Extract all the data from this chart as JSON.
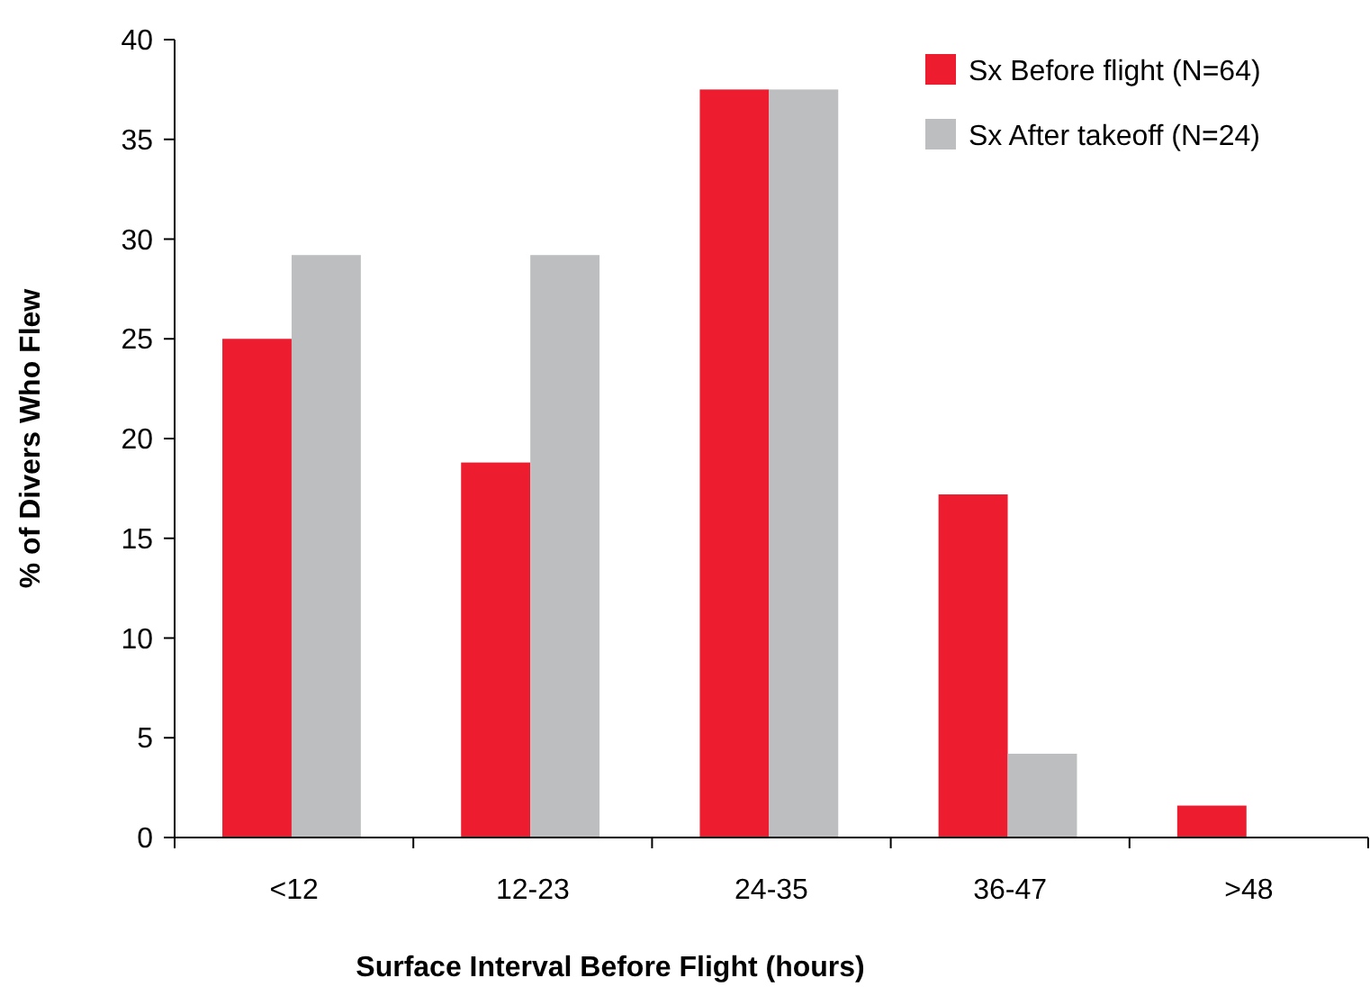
{
  "chart_data": {
    "type": "bar",
    "xlabel": "Surface Interval Before Flight (hours)",
    "ylabel": "% of Divers Who Flew",
    "categories": [
      "<12",
      "12-23",
      "24-35",
      "36-47",
      ">48"
    ],
    "series": [
      {
        "name": "Sx Before flight (N=64)",
        "color": "#ed1c2e",
        "values": [
          25,
          18.8,
          37.5,
          17.2,
          1.6
        ]
      },
      {
        "name": "Sx After takeoff (N=24)",
        "color": "#bcbec0",
        "values": [
          29.2,
          29.2,
          37.5,
          4.2,
          0
        ]
      }
    ],
    "ylim": [
      0,
      40
    ],
    "yticks": [
      0,
      5,
      10,
      15,
      20,
      25,
      30,
      35,
      40
    ],
    "grid": false,
    "legend": "top right"
  }
}
